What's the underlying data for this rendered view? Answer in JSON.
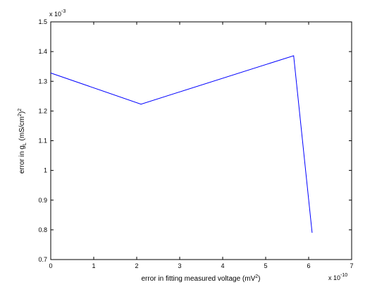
{
  "chart_data": {
    "type": "line",
    "title": "",
    "xlabel": "error in fitting measured voltage (mV",
    "xlabel_sup": "2",
    "xlabel_end": ")",
    "ylabel": "error in g",
    "ylabel_sub": "L",
    "ylabel_end": " (mS/cm",
    "ylabel_sup": "2",
    "ylabel_close": ")",
    "ylabel_sup2": "2",
    "x_multiplier": {
      "base": "x 10",
      "exp": "-10"
    },
    "y_multiplier": {
      "base": "x 10",
      "exp": "-3"
    },
    "xlim": [
      0,
      7
    ],
    "ylim": [
      0.7,
      1.5
    ],
    "x_ticks": [
      0,
      1,
      2,
      3,
      4,
      5,
      6,
      7
    ],
    "y_ticks": [
      0.7,
      0.8,
      0.9,
      1,
      1.1,
      1.2,
      1.3,
      1.4,
      1.5
    ],
    "x_tick_labels": [
      "0",
      "1",
      "2",
      "3",
      "4",
      "5",
      "6",
      "7"
    ],
    "y_tick_labels": [
      "0.7",
      "0.8",
      "0.9",
      "1",
      "1.1",
      "1.2",
      "1.3",
      "1.4",
      "1.5"
    ],
    "grid": false,
    "legend": "none",
    "series": [
      {
        "color": "#0000ff",
        "x": [
          0.0,
          2.1,
          5.65,
          6.08
        ],
        "y": [
          1.328,
          1.223,
          1.386,
          0.79
        ]
      }
    ]
  }
}
